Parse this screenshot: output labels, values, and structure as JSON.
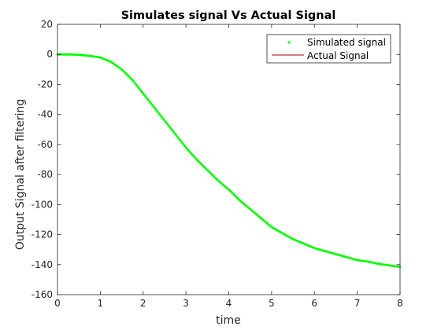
{
  "chart_data": {
    "type": "line",
    "title": "Simulates signal Vs Actual Signal",
    "xlabel": "time",
    "ylabel": "Output Signal after filtering",
    "xlim": [
      0,
      8
    ],
    "ylim": [
      -160,
      20
    ],
    "xticks": [
      0,
      1,
      2,
      3,
      4,
      5,
      6,
      7,
      8
    ],
    "yticks": [
      20,
      0,
      -20,
      -40,
      -60,
      -80,
      -100,
      -120,
      -140,
      -160
    ],
    "grid": false,
    "legend_position": "top-right",
    "series": [
      {
        "name": "Simulated signal",
        "style": "markers",
        "color": "#00ff00",
        "x": [
          0,
          0.25,
          0.5,
          0.75,
          1.0,
          1.25,
          1.5,
          1.75,
          2.0,
          2.25,
          2.5,
          2.75,
          3.0,
          3.25,
          3.5,
          3.75,
          4.0,
          4.25,
          4.5,
          4.75,
          5.0,
          5.25,
          5.5,
          5.75,
          6.0,
          6.25,
          6.5,
          6.75,
          7.0,
          7.25,
          7.5,
          7.75,
          8.0
        ],
        "y": [
          0,
          0,
          -0.3,
          -1,
          -2,
          -5,
          -10,
          -17,
          -26,
          -35,
          -44,
          -53,
          -62,
          -70,
          -77,
          -84,
          -90,
          -97,
          -103,
          -109,
          -115,
          -119,
          -123,
          -126,
          -129,
          -131,
          -133,
          -135,
          -137,
          -138,
          -139.5,
          -140.5,
          -141.5
        ]
      },
      {
        "name": "Actual Signal",
        "style": "line",
        "color": "#a00000",
        "x": [
          0,
          0.25,
          0.5,
          0.75,
          1.0,
          1.25,
          1.5,
          1.75,
          2.0,
          2.25,
          2.5,
          2.75,
          3.0,
          3.25,
          3.5,
          3.75,
          4.0,
          4.25,
          4.5,
          4.75,
          5.0,
          5.25,
          5.5,
          5.75,
          6.0,
          6.25,
          6.5,
          6.75,
          7.0,
          7.25,
          7.5,
          7.75,
          8.0
        ],
        "y": [
          0,
          0,
          -0.3,
          -1,
          -2,
          -5,
          -10,
          -17,
          -26,
          -35,
          -44,
          -53,
          -62,
          -70,
          -77,
          -84,
          -90,
          -97,
          -103,
          -109,
          -115,
          -119,
          -123,
          -126,
          -129,
          -131,
          -133,
          -135,
          -137,
          -138,
          -139.5,
          -140.5,
          -141.5
        ]
      }
    ]
  }
}
